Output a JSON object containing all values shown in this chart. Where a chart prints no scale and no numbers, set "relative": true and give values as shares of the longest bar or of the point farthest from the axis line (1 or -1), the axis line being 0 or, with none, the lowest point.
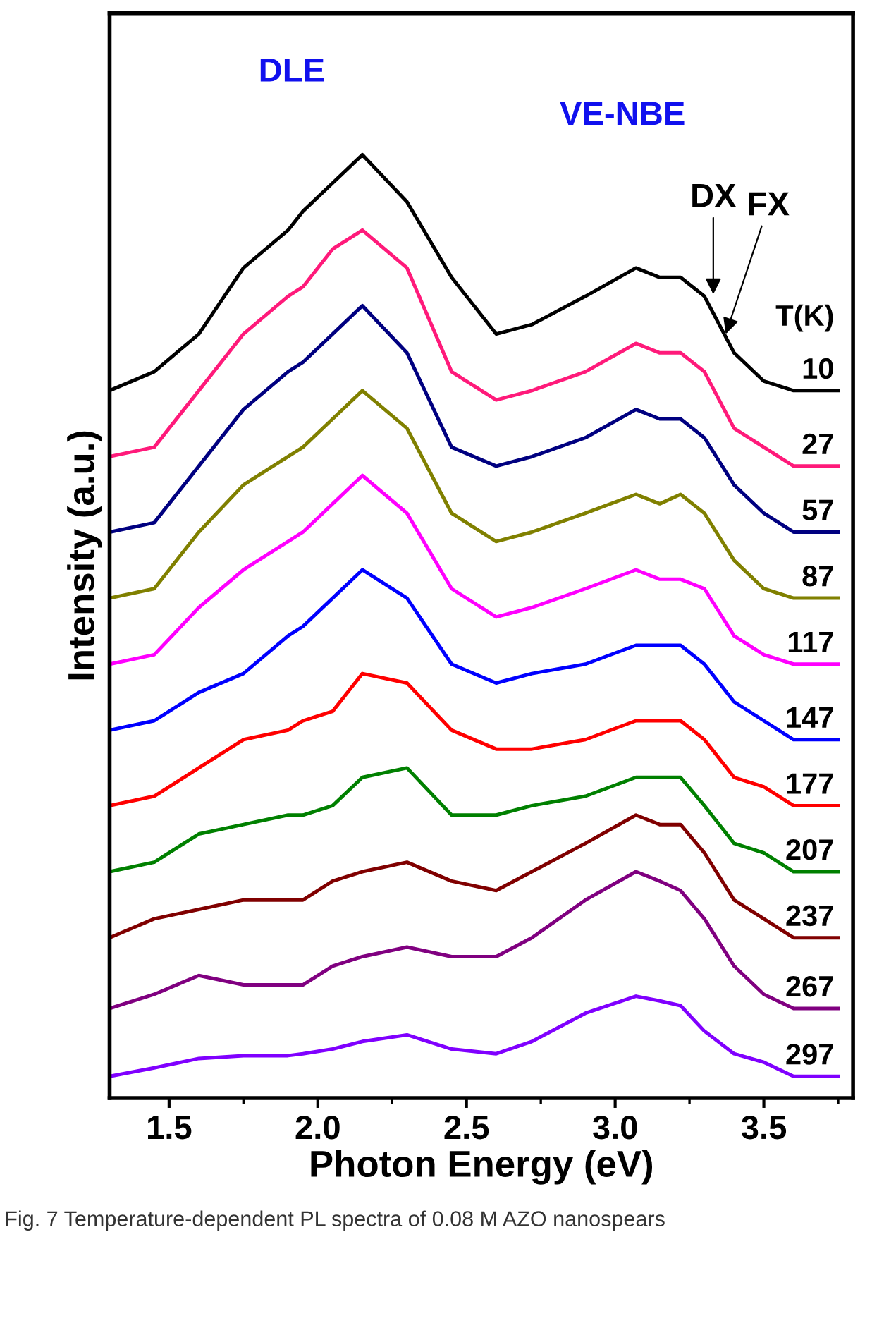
{
  "chart_data": {
    "type": "line",
    "relative": true,
    "xlabel": "Photon Energy (eV)",
    "ylabel": "Intensity (a.u.)",
    "legend_title": "T(K)",
    "xlim": [
      1.3,
      3.8
    ],
    "xticks": [
      1.5,
      {
        "value": 2,
        "label": "2.0"
      },
      2.5,
      {
        "value": 3,
        "label": "3.0"
      },
      3.5
    ],
    "grid": false,
    "legend": false,
    "tick_labels": "x",
    "x": [
      1.3,
      1.45,
      1.6,
      1.75,
      1.9,
      1.95,
      2.05,
      2.15,
      2.3,
      2.45,
      2.6,
      2.72,
      2.9,
      3.07,
      3.15,
      3.22,
      3.3,
      3.4,
      3.5,
      3.6,
      3.75
    ],
    "series": [
      {
        "name": "10",
        "color": "#000000",
        "values": [
          0.75,
          0.77,
          0.81,
          0.88,
          0.92,
          0.94,
          0.97,
          1.0,
          0.95,
          0.87,
          0.81,
          0.82,
          0.85,
          0.88,
          0.87,
          0.87,
          0.85,
          0.79,
          0.76,
          0.75,
          0.75
        ]
      },
      {
        "name": "27",
        "color": "#ff1a7a",
        "values": [
          0.68,
          0.69,
          0.75,
          0.81,
          0.85,
          0.86,
          0.9,
          0.92,
          0.88,
          0.77,
          0.74,
          0.75,
          0.77,
          0.8,
          0.79,
          0.79,
          0.77,
          0.71,
          0.69,
          0.67,
          0.67
        ]
      },
      {
        "name": "57",
        "color": "#000080",
        "values": [
          0.6,
          0.61,
          0.67,
          0.73,
          0.77,
          0.78,
          0.81,
          0.84,
          0.79,
          0.69,
          0.67,
          0.68,
          0.7,
          0.73,
          0.72,
          0.72,
          0.7,
          0.65,
          0.62,
          0.6,
          0.6
        ]
      },
      {
        "name": "87",
        "color": "#808000",
        "values": [
          0.53,
          0.54,
          0.6,
          0.65,
          0.68,
          0.69,
          0.72,
          0.75,
          0.71,
          0.62,
          0.59,
          0.6,
          0.62,
          0.64,
          0.63,
          0.64,
          0.62,
          0.57,
          0.54,
          0.53,
          0.53
        ]
      },
      {
        "name": "117",
        "color": "#ff00ff",
        "values": [
          0.46,
          0.47,
          0.52,
          0.56,
          0.59,
          0.6,
          0.63,
          0.66,
          0.62,
          0.54,
          0.51,
          0.52,
          0.54,
          0.56,
          0.55,
          0.55,
          0.54,
          0.49,
          0.47,
          0.46,
          0.46
        ]
      },
      {
        "name": "147",
        "color": "#0000ff",
        "values": [
          0.39,
          0.4,
          0.43,
          0.45,
          0.49,
          0.5,
          0.53,
          0.56,
          0.53,
          0.46,
          0.44,
          0.45,
          0.46,
          0.48,
          0.48,
          0.48,
          0.46,
          0.42,
          0.4,
          0.38,
          0.38
        ]
      },
      {
        "name": "177",
        "color": "#ff0000",
        "values": [
          0.31,
          0.32,
          0.35,
          0.38,
          0.39,
          0.4,
          0.41,
          0.45,
          0.44,
          0.39,
          0.37,
          0.37,
          0.38,
          0.4,
          0.4,
          0.4,
          0.38,
          0.34,
          0.33,
          0.31,
          0.31
        ]
      },
      {
        "name": "207",
        "color": "#008000",
        "values": [
          0.24,
          0.25,
          0.28,
          0.29,
          0.3,
          0.3,
          0.31,
          0.34,
          0.35,
          0.3,
          0.3,
          0.31,
          0.32,
          0.34,
          0.34,
          0.34,
          0.31,
          0.27,
          0.26,
          0.24,
          0.24
        ]
      },
      {
        "name": "237",
        "color": "#800000",
        "values": [
          0.17,
          0.19,
          0.2,
          0.21,
          0.21,
          0.21,
          0.23,
          0.24,
          0.25,
          0.23,
          0.22,
          0.24,
          0.27,
          0.3,
          0.29,
          0.29,
          0.26,
          0.21,
          0.19,
          0.17,
          0.17
        ]
      },
      {
        "name": "267",
        "color": "#800080",
        "values": [
          0.095,
          0.11,
          0.13,
          0.12,
          0.12,
          0.12,
          0.14,
          0.15,
          0.16,
          0.15,
          0.15,
          0.17,
          0.21,
          0.24,
          0.23,
          0.22,
          0.19,
          0.14,
          0.11,
          0.095,
          0.095
        ]
      },
      {
        "name": "297",
        "color": "#8000ff",
        "values": [
          0.023,
          0.032,
          0.042,
          0.045,
          0.045,
          0.047,
          0.052,
          0.06,
          0.067,
          0.052,
          0.047,
          0.06,
          0.09,
          0.108,
          0.103,
          0.098,
          0.071,
          0.047,
          0.038,
          0.023,
          0.023
        ]
      }
    ],
    "annotations": [
      "DLE",
      "VE-NBE",
      {
        "text": "DX",
        "x": 3.33,
        "y": 0.85
      },
      "FX",
      "Fig. 7 Temperature-dependent PL spectra of 0.08 M AZO nanospears"
    ]
  }
}
